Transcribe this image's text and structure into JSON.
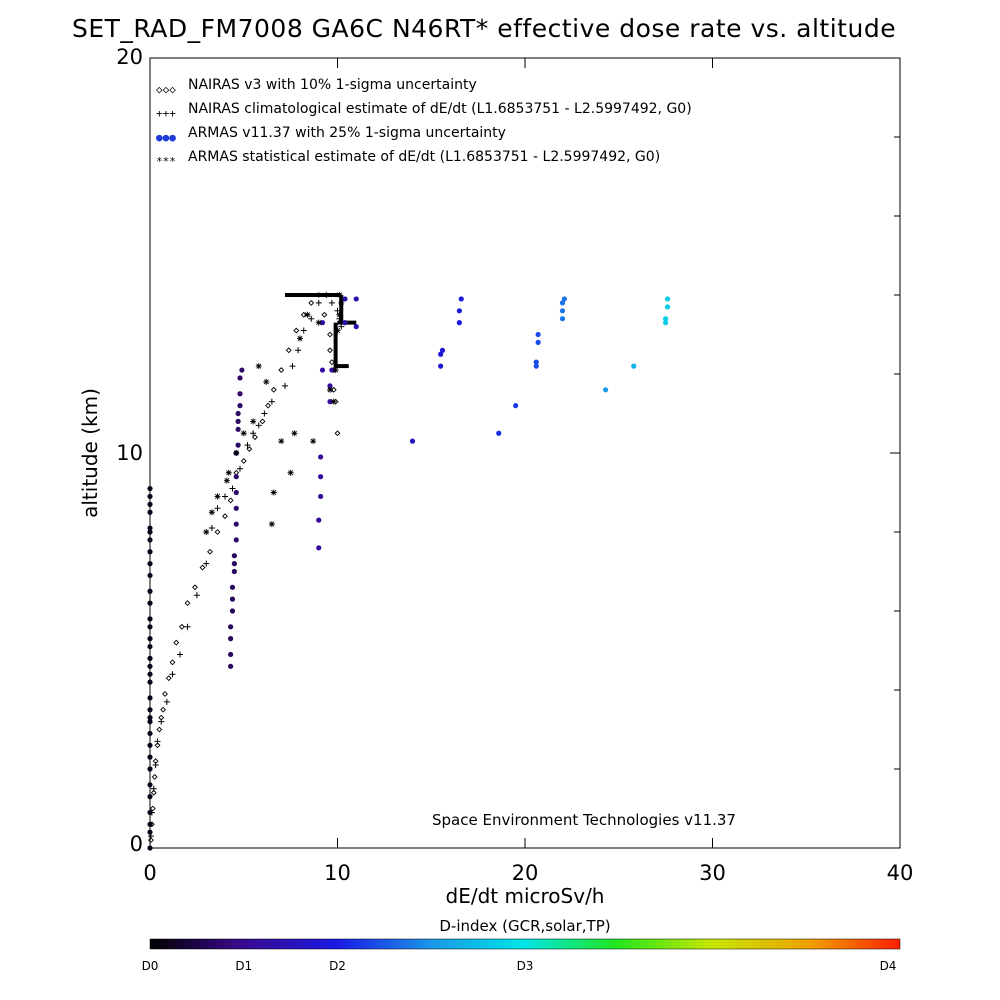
{
  "chart_data": {
    "type": "scatter",
    "title": "SET_RAD_FM7008  GA6C N46RT* effective dose rate vs. altitude",
    "xlabel": "dE/dt microSv/h",
    "ylabel": "altitude (km)",
    "xlim": [
      0,
      40
    ],
    "ylim": [
      0,
      20
    ],
    "x_tick_labels": [
      "0",
      "10",
      "20",
      "30",
      "40"
    ],
    "y_tick_labels": [
      "0",
      "10",
      "20"
    ],
    "credit": "Space Environment Technologies v11.37",
    "legend": {
      "placement": "top-left",
      "entries": [
        {
          "symbol": "◇◇◇",
          "label": "NAIRAS v3 with 10% 1-sigma uncertainty"
        },
        {
          "symbol": "+++",
          "label": "NAIRAS climatological estimate of dE/dt (L1.6853751 - L2.5997492, G0)"
        },
        {
          "symbol": "●●●",
          "label": "ARMAS v11.37 with 25% 1-sigma uncertainty",
          "color": "#1e3cd8"
        },
        {
          "symbol": "***",
          "label": "ARMAS statistical estimate of dE/dt (L1.6853751 - L2.5997492, G0)"
        }
      ]
    },
    "colorbar": {
      "title": "D-index (GCR,solar,TP)",
      "labels": [
        "D0",
        "D1",
        "D2",
        "D3",
        "D4"
      ],
      "label_positions": [
        0.0,
        0.125,
        0.25,
        0.5,
        1.0
      ]
    },
    "series": [
      {
        "name": "NAIRAS v3 with 10% 1-sigma uncertainty",
        "marker": "diamond",
        "color": "#000000",
        "x": [
          0.05,
          0.1,
          0.15,
          0.2,
          0.25,
          0.3,
          0.4,
          0.5,
          0.6,
          0.7,
          0.8,
          1.0,
          1.2,
          1.4,
          1.7,
          2.0,
          2.4,
          2.8,
          3.2,
          3.6,
          4.0,
          4.3,
          4.6,
          5.0,
          5.3,
          5.6,
          6.0,
          6.3,
          6.6,
          7.0,
          7.4,
          7.8,
          8.2,
          8.6,
          9.0,
          9.3,
          9.6,
          9.6,
          9.7,
          9.8,
          9.8,
          9.9,
          10.0
        ],
        "y": [
          0.2,
          0.6,
          1.0,
          1.4,
          1.8,
          2.2,
          2.6,
          3.0,
          3.3,
          3.5,
          3.9,
          4.3,
          4.7,
          5.2,
          5.6,
          6.2,
          6.6,
          7.1,
          7.5,
          8.0,
          8.4,
          8.8,
          9.5,
          9.8,
          10.1,
          10.4,
          10.8,
          11.2,
          11.6,
          12.1,
          12.6,
          13.1,
          13.5,
          13.8,
          14.0,
          13.5,
          13.0,
          12.6,
          12.3,
          12.1,
          11.6,
          11.3,
          10.5
        ]
      },
      {
        "name": "NAIRAS climatological estimate of dE/dt (L1.6853751 - L2.5997492, G0)",
        "marker": "plus",
        "color": "#000000",
        "x": [
          0.05,
          0.1,
          0.2,
          0.3,
          0.4,
          0.6,
          0.9,
          1.2,
          1.6,
          2.0,
          2.5,
          3.0,
          3.3,
          3.6,
          4.0,
          4.4,
          4.8,
          5.2,
          5.5,
          5.8,
          6.1,
          6.5,
          7.2,
          7.6,
          7.9,
          8.2,
          8.6,
          9.0,
          9.4,
          9.7,
          10.0,
          10.1,
          10.2
        ],
        "y": [
          0.3,
          0.9,
          1.5,
          2.1,
          2.7,
          3.2,
          3.7,
          4.4,
          4.9,
          5.6,
          6.4,
          7.2,
          8.1,
          8.6,
          8.9,
          9.1,
          9.6,
          10.2,
          10.5,
          10.7,
          11.0,
          11.3,
          11.7,
          12.2,
          12.6,
          13.1,
          13.4,
          13.8,
          14.0,
          13.8,
          13.6,
          13.4,
          13.2
        ]
      },
      {
        "name": "ARMAS v11.37 with 25% 1-sigma uncertainty",
        "marker": "dot",
        "color": "#1e3cd8",
        "x": [
          0.0,
          0.0,
          0.0,
          0.0,
          0.0,
          0.0,
          0.0,
          0.0,
          0.0,
          0.0,
          0.0,
          0.0,
          0.0,
          0.0,
          0.0,
          0.0,
          0.0,
          0.0,
          0.0,
          0.0,
          0.0,
          0.0,
          0.0,
          0.0,
          0.0,
          0.0,
          0.0,
          0.0,
          0.0,
          0.0,
          0.0,
          0.0,
          0.0,
          0.0,
          4.3,
          4.3,
          4.3,
          4.3,
          4.4,
          4.4,
          4.4,
          4.5,
          4.5,
          4.5,
          4.6,
          4.6,
          4.6,
          4.6,
          4.6,
          4.6,
          4.7,
          4.7,
          4.7,
          4.7,
          4.8,
          4.8,
          4.8,
          4.9,
          9.0,
          9.0,
          9.1,
          9.1,
          9.1,
          9.2,
          9.2,
          9.6,
          9.6,
          9.7,
          10.4,
          10.4,
          11.0,
          11.0,
          14.0,
          15.5,
          15.5,
          15.6,
          16.5,
          16.5,
          16.6,
          18.6,
          19.5,
          20.6,
          20.6,
          20.7,
          20.7,
          22.0,
          22.0,
          22.0,
          22.1,
          24.3,
          25.8,
          27.5,
          27.5,
          27.6,
          27.6
        ],
        "y": [
          0.0,
          0.4,
          0.6,
          0.9,
          1.3,
          1.6,
          2.0,
          2.3,
          2.6,
          2.9,
          3.2,
          3.3,
          3.5,
          3.8,
          4.2,
          4.4,
          4.6,
          4.8,
          5.1,
          5.3,
          5.6,
          5.8,
          6.2,
          6.5,
          6.9,
          7.2,
          7.5,
          7.8,
          8.0,
          8.1,
          8.5,
          8.7,
          8.9,
          9.1,
          4.6,
          4.9,
          5.3,
          5.6,
          6.0,
          6.3,
          6.6,
          7.0,
          7.2,
          7.4,
          7.8,
          8.2,
          8.6,
          9.0,
          9.4,
          10.0,
          10.2,
          10.6,
          10.8,
          11.0,
          11.2,
          11.5,
          11.9,
          12.1,
          7.6,
          8.3,
          8.9,
          9.4,
          9.9,
          12.1,
          13.3,
          11.3,
          11.7,
          12.1,
          13.3,
          13.9,
          13.2,
          13.9,
          10.3,
          12.2,
          12.5,
          12.6,
          13.3,
          13.6,
          13.9,
          10.5,
          11.2,
          12.2,
          12.3,
          12.8,
          13.0,
          13.4,
          13.6,
          13.8,
          13.9,
          11.6,
          12.2,
          13.3,
          13.4,
          13.7,
          13.9
        ],
        "d_index": [
          0.02,
          0.02,
          0.02,
          0.02,
          0.02,
          0.02,
          0.02,
          0.02,
          0.02,
          0.02,
          0.02,
          0.02,
          0.02,
          0.02,
          0.02,
          0.02,
          0.02,
          0.02,
          0.02,
          0.02,
          0.02,
          0.02,
          0.02,
          0.02,
          0.02,
          0.02,
          0.02,
          0.02,
          0.02,
          0.02,
          0.02,
          0.02,
          0.02,
          0.02,
          0.08,
          0.08,
          0.08,
          0.08,
          0.08,
          0.08,
          0.08,
          0.08,
          0.08,
          0.08,
          0.09,
          0.09,
          0.09,
          0.09,
          0.09,
          0.09,
          0.09,
          0.09,
          0.09,
          0.09,
          0.09,
          0.09,
          0.09,
          0.09,
          0.14,
          0.14,
          0.14,
          0.14,
          0.14,
          0.15,
          0.15,
          0.15,
          0.15,
          0.15,
          0.16,
          0.16,
          0.17,
          0.17,
          0.2,
          0.22,
          0.22,
          0.22,
          0.24,
          0.24,
          0.24,
          0.27,
          0.28,
          0.3,
          0.3,
          0.3,
          0.3,
          0.34,
          0.34,
          0.34,
          0.34,
          0.38,
          0.42,
          0.46,
          0.46,
          0.46,
          0.46
        ]
      },
      {
        "name": "ARMAS statistical estimate of dE/dt (L1.6853751 - L2.5997492, G0)",
        "marker": "asterisk",
        "color": "#000000",
        "x": [
          3.0,
          3.3,
          3.6,
          4.1,
          4.2,
          4.6,
          5.0,
          5.5,
          5.8,
          6.2,
          6.5,
          6.6,
          7.0,
          7.5,
          7.7,
          8.0,
          8.4,
          8.7,
          9.0,
          9.6,
          9.8,
          9.9,
          10.0,
          10.1,
          10.1,
          10.2
        ],
        "y": [
          8.0,
          8.5,
          8.9,
          9.3,
          9.5,
          10.0,
          10.5,
          10.8,
          12.2,
          11.8,
          8.2,
          9.0,
          10.3,
          9.5,
          10.5,
          12.9,
          13.5,
          10.3,
          13.3,
          11.6,
          11.3,
          12.1,
          13.1,
          13.5,
          14.0,
          13.8
        ]
      }
    ],
    "bold_lines": [
      {
        "x": [
          7.2,
          10.2
        ],
        "y": [
          14.0,
          14.0
        ]
      },
      {
        "x": [
          10.2,
          10.2
        ],
        "y": [
          14.0,
          13.3
        ]
      },
      {
        "x": [
          10.0,
          11.0
        ],
        "y": [
          13.3,
          13.3
        ]
      },
      {
        "x": [
          9.9,
          9.9
        ],
        "y": [
          13.3,
          12.2
        ]
      },
      {
        "x": [
          9.8,
          10.6
        ],
        "y": [
          12.2,
          12.2
        ]
      }
    ]
  }
}
